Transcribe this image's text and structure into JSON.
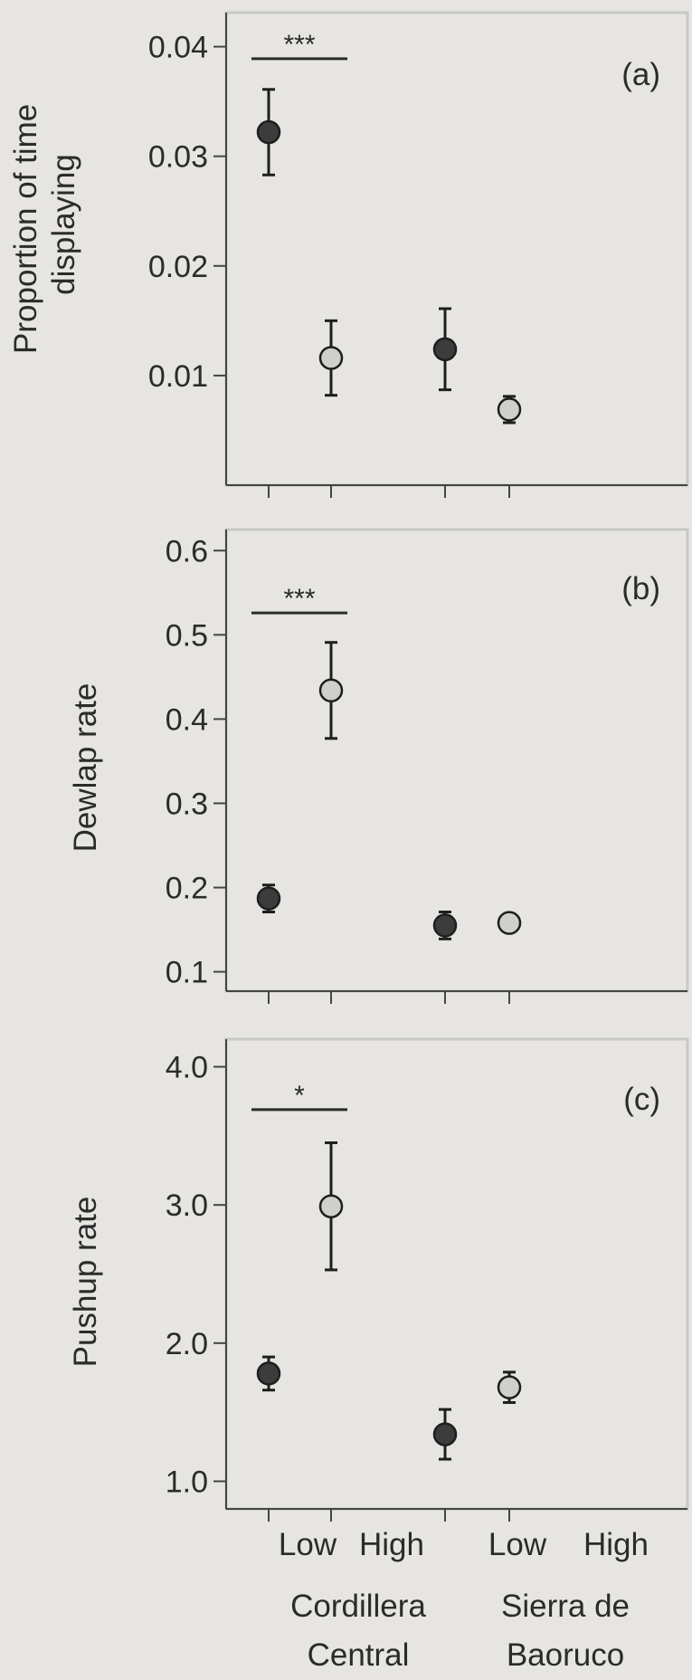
{
  "chart_data": [
    {
      "type": "scatter",
      "panel": "(a)",
      "ylabel": [
        "Proportion of time",
        "displaying"
      ],
      "ylim": [
        0.0,
        0.0431
      ],
      "yticks": [
        0.01,
        0.02,
        0.03,
        0.04
      ],
      "ytick_labels": [
        "0.01",
        "0.02",
        "0.03",
        "0.04"
      ],
      "points": [
        {
          "category": "Low",
          "group": "Cordillera Central",
          "y": 0.0322,
          "err": 0.0039,
          "color": "#3c3c3c"
        },
        {
          "category": "High",
          "group": "Cordillera Central",
          "y": 0.0116,
          "err": 0.0034,
          "color": "#cfcfcc"
        },
        {
          "category": "Low",
          "group": "Sierra de Baoruco",
          "y": 0.0124,
          "err": 0.0037,
          "color": "#3c3c3c"
        },
        {
          "category": "High",
          "group": "Sierra de Baoruco",
          "y": 0.0069,
          "err": 0.0012,
          "color": "#cfcfcc"
        }
      ],
      "significance": {
        "label": "***",
        "y": 0.0389
      }
    },
    {
      "type": "scatter",
      "panel": "(b)",
      "ylabel": [
        "Dewlap rate"
      ],
      "ylim": [
        0.077,
        0.625
      ],
      "yticks": [
        0.1,
        0.2,
        0.3,
        0.4,
        0.5,
        0.6
      ],
      "ytick_labels": [
        "0.1",
        "0.2",
        "0.3",
        "0.4",
        "0.5",
        "0.6"
      ],
      "points": [
        {
          "category": "Low",
          "group": "Cordillera Central",
          "y": 0.187,
          "err": 0.016,
          "color": "#3c3c3c"
        },
        {
          "category": "High",
          "group": "Cordillera Central",
          "y": 0.434,
          "err": 0.057,
          "color": "#cfcfcc"
        },
        {
          "category": "Low",
          "group": "Sierra de Baoruco",
          "y": 0.155,
          "err": 0.016,
          "color": "#3c3c3c"
        },
        {
          "category": "High",
          "group": "Sierra de Baoruco",
          "y": 0.158,
          "err": 0.009,
          "color": "#cfcfcc"
        }
      ],
      "significance": {
        "label": "***",
        "y": 0.526
      }
    },
    {
      "type": "scatter",
      "panel": "(c)",
      "ylabel": [
        "Pushup rate"
      ],
      "ylim": [
        0.8,
        4.2
      ],
      "yticks": [
        1.0,
        2.0,
        3.0,
        4.0
      ],
      "ytick_labels": [
        "1.0",
        "2.0",
        "3.0",
        "4.0"
      ],
      "points": [
        {
          "category": "Low",
          "group": "Cordillera Central",
          "y": 1.78,
          "err": 0.12,
          "color": "#3c3c3c"
        },
        {
          "category": "High",
          "group": "Cordillera Central",
          "y": 2.99,
          "err": 0.46,
          "color": "#cfcfcc"
        },
        {
          "category": "Low",
          "group": "Sierra de Baoruco",
          "y": 1.34,
          "err": 0.18,
          "color": "#3c3c3c"
        },
        {
          "category": "High",
          "group": "Sierra de Baoruco",
          "y": 1.68,
          "err": 0.11,
          "color": "#cfcfcc"
        }
      ],
      "significance": {
        "label": "*",
        "y": 3.69
      }
    }
  ],
  "x_categories": [
    "Low",
    "High",
    "Low",
    "High"
  ],
  "x_groups": [
    {
      "line1": "Cordillera",
      "line2": "Central"
    },
    {
      "line1": "Sierra de",
      "line2": "Baoruco"
    }
  ],
  "colors": {
    "background": "#e6e5e2",
    "panel_border": "#c8c8c6",
    "axis": "#444444",
    "low_marker": "#3c3c3c",
    "high_marker": "#cfcfcc",
    "marker_edge": "#1e1e1e"
  }
}
